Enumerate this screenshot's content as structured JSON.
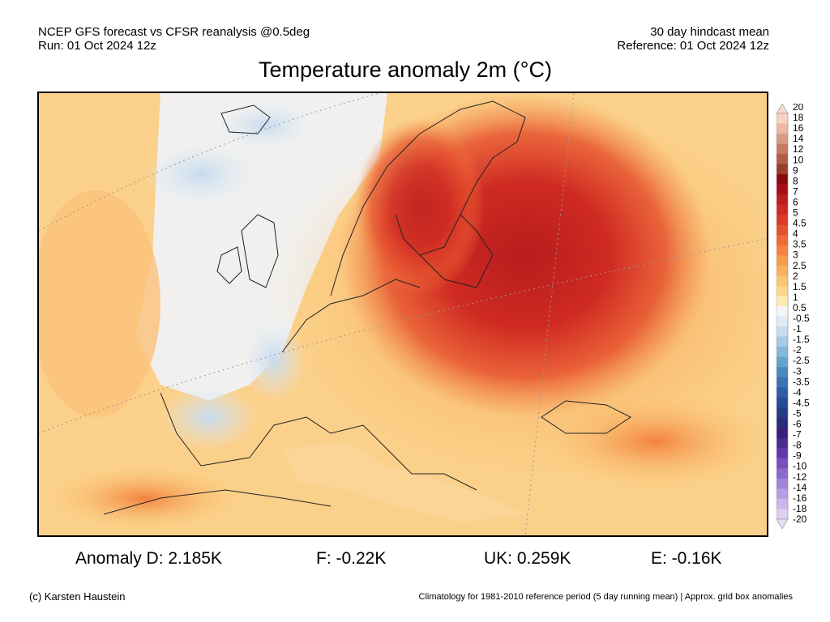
{
  "header": {
    "left_line1": "NCEP GFS forecast vs CFSR reanalysis @0.5deg",
    "left_line2": "Run: 01 Oct 2024 12z",
    "right_line1": "30 day hindcast mean",
    "right_line2": "Reference: 01 Oct 2024 12z"
  },
  "title": "Temperature anomaly 2m (°C)",
  "colorbar": {
    "labels": [
      "20",
      "18",
      "16",
      "14",
      "12",
      "10",
      "9",
      "8",
      "7",
      "6",
      "5",
      "4.5",
      "4",
      "3.5",
      "3",
      "2.5",
      "2",
      "1.5",
      "1",
      "0.5",
      "-0.5",
      "-1",
      "-1.5",
      "-2",
      "-2.5",
      "-3",
      "-3.5",
      "-4",
      "-4.5",
      "-5",
      "-6",
      "-7",
      "-8",
      "-9",
      "-10",
      "-12",
      "-14",
      "-16",
      "-18",
      "-20"
    ],
    "colors": [
      "#f5d3c4",
      "#eab8a4",
      "#d99b83",
      "#c57a62",
      "#b05c46",
      "#9a3d2b",
      "#8b0a0a",
      "#a50f15",
      "#bb1e1e",
      "#cf2a22",
      "#de3a26",
      "#e6522f",
      "#ee6a37",
      "#f3823f",
      "#f69a4c",
      "#f8b05c",
      "#fac672",
      "#fcd98e",
      "#fde9b3",
      "#f5f5f5",
      "#deeaf6",
      "#c6dbef",
      "#a6cbe3",
      "#85b8d8",
      "#64a3cc",
      "#4a8bbf",
      "#3a73b1",
      "#2f5ea3",
      "#284b95",
      "#243b86",
      "#2a2c7a",
      "#3a1f7a",
      "#4b2a91",
      "#6039a8",
      "#7650bd",
      "#8c6acc",
      "#a283d8",
      "#b79de3",
      "#cbb7ec",
      "#ded0f3"
    ],
    "top_arrow_color": "#f7dccf",
    "bottom_arrow_color": "#e5dcf5"
  },
  "stats": {
    "anomaly_d": "Anomaly D: 2.185K",
    "f": "F: -0.22K",
    "uk": "UK: 0.259K",
    "e": "E: -0.16K"
  },
  "footer": {
    "left": "(c) Karsten Haustein",
    "right": "Climatology for 1981-2010 reference period (5 day running mean) | Approx. grid box anomalies"
  }
}
